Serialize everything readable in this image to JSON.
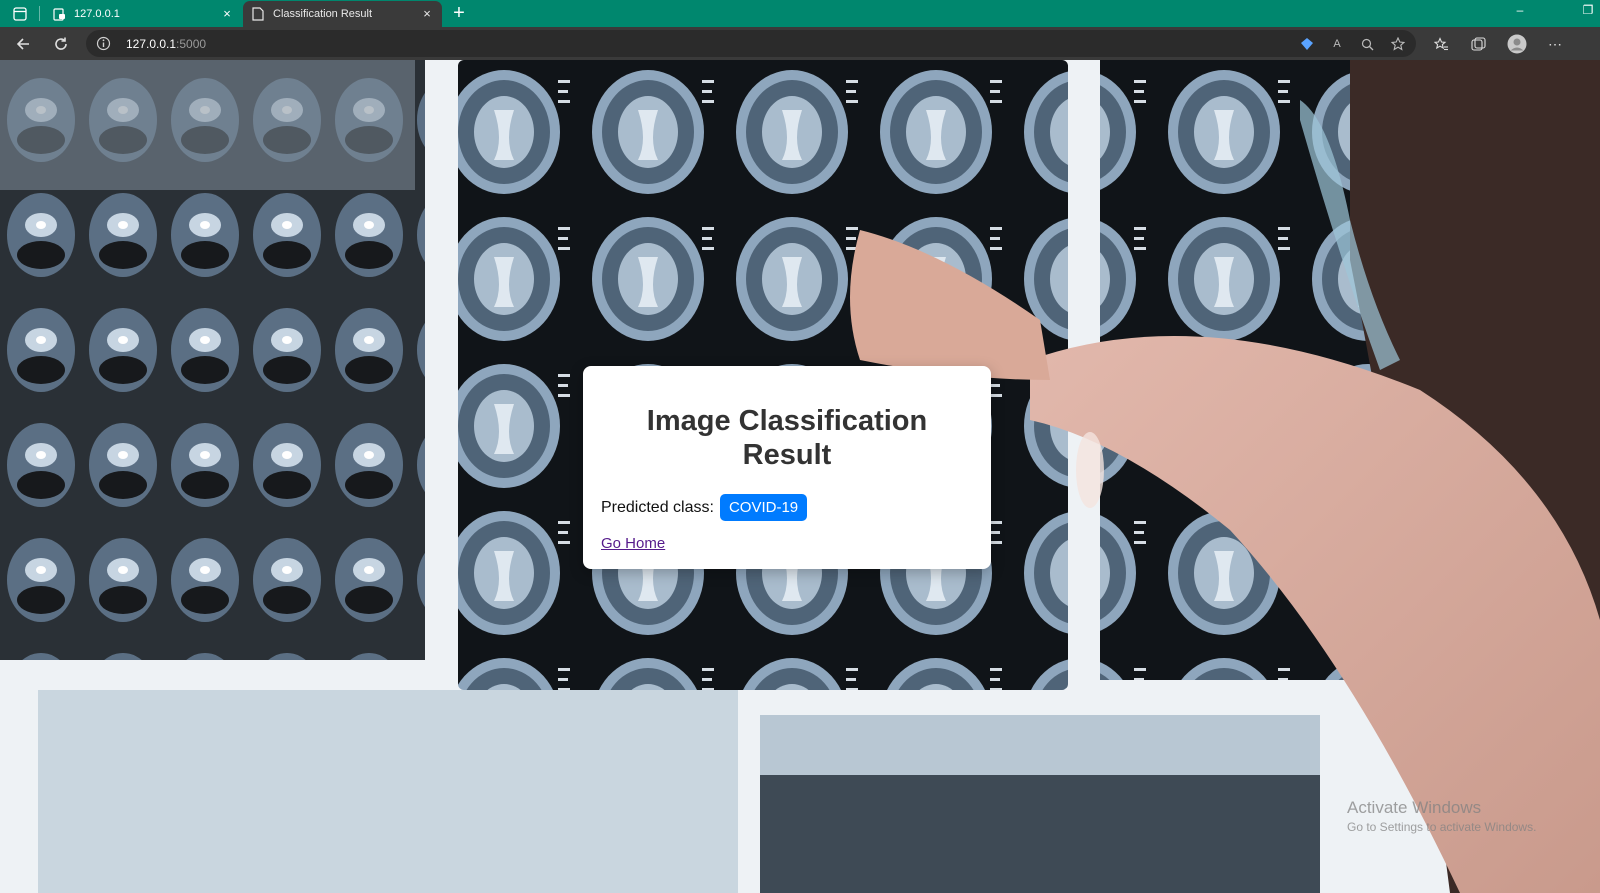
{
  "browser": {
    "tabs": [
      {
        "title": "127.0.0.1",
        "active": false
      },
      {
        "title": "Classification Result",
        "active": true
      }
    ],
    "new_tab_label": "+",
    "close_label": "×",
    "address": {
      "host": "127.0.0.1",
      "port": ":5000"
    },
    "window_controls": {
      "minimize": "–",
      "restore": "❐"
    }
  },
  "page": {
    "card": {
      "title": "Image Classification Result",
      "predicted_label": "Predicted class:",
      "predicted_value": "COVID-19",
      "home_link": "Go Home"
    },
    "background_image": "doctor pointing at brain MRI scans on lightbox",
    "watermark": {
      "line1": "Activate Windows",
      "line2": "Go to Settings to activate Windows."
    }
  },
  "colors": {
    "tab_strip": "#00876e",
    "toolbar": "#3a3a3a",
    "badge": "#007bff",
    "link_visited": "#551a8b"
  }
}
